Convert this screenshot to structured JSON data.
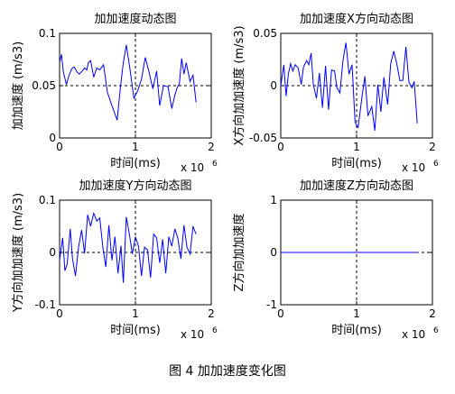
{
  "figure": {
    "caption": "图 4  加加速度变化图"
  },
  "chart_data": [
    {
      "type": "line",
      "title": "加加速度动态图",
      "xlabel": "时间(ms)",
      "ylabel": "加加速度 (m/s3)",
      "x_multiplier": "x 10",
      "x_exponent": "6",
      "xlim": [
        0,
        2
      ],
      "ylim": [
        0,
        0.1
      ],
      "xticks": [
        0,
        1,
        2
      ],
      "xtick_labels": [
        "0",
        "1",
        "2"
      ],
      "yticks": [
        0,
        0.05,
        0.1
      ],
      "ytick_labels": [
        "0",
        "0.05",
        "0.1"
      ],
      "guide_x": 1,
      "guide_y": 0.05,
      "series": [
        {
          "x": [
            0,
            0.025,
            0.05,
            0.09,
            0.12,
            0.16,
            0.19,
            0.23,
            0.26,
            0.3,
            0.33,
            0.36,
            0.38,
            0.41,
            0.45,
            0.49,
            0.53,
            0.58,
            0.63,
            0.68,
            0.72,
            0.76,
            0.8,
            0.84,
            0.88,
            0.93,
            0.98,
            1.03,
            1.08,
            1.13,
            1.18,
            1.23,
            1.28,
            1.32,
            1.37,
            1.43,
            1.48,
            1.52,
            1.55,
            1.58,
            1.61,
            1.64,
            1.67,
            1.72,
            1.76,
            1.8
          ],
          "y": [
            0.072,
            0.08,
            0.063,
            0.051,
            0.059,
            0.066,
            0.068,
            0.063,
            0.061,
            0.064,
            0.067,
            0.065,
            0.072,
            0.074,
            0.058,
            0.067,
            0.065,
            0.07,
            0.044,
            0.033,
            0.025,
            0.017,
            0.047,
            0.072,
            0.089,
            0.065,
            0.038,
            0.045,
            0.056,
            0.077,
            0.063,
            0.047,
            0.064,
            0.031,
            0.05,
            0.049,
            0.028,
            0.041,
            0.048,
            0.052,
            0.076,
            0.061,
            0.072,
            0.054,
            0.06,
            0.034
          ]
        }
      ]
    },
    {
      "type": "line",
      "title": "加加速度X方向动态图",
      "xlabel": "时间(ms)",
      "ylabel": "X方向加加速度 (m/s3)",
      "x_multiplier": "x 10",
      "x_exponent": "6",
      "xlim": [
        0,
        2
      ],
      "ylim": [
        -0.05,
        0.05
      ],
      "xticks": [
        0,
        1,
        2
      ],
      "xtick_labels": [
        "0",
        "1",
        "2"
      ],
      "yticks": [
        -0.05,
        0,
        0.05
      ],
      "ytick_labels": [
        "-0.05",
        "0",
        "0.05"
      ],
      "guide_x": 1,
      "guide_y": 0,
      "series": [
        {
          "x": [
            0,
            0.04,
            0.07,
            0.1,
            0.13,
            0.16,
            0.19,
            0.23,
            0.27,
            0.3,
            0.34,
            0.37,
            0.4,
            0.43,
            0.47,
            0.51,
            0.55,
            0.59,
            0.63,
            0.67,
            0.71,
            0.74,
            0.78,
            0.82,
            0.86,
            0.9,
            0.94,
            0.98,
            1.02,
            1.07,
            1.11,
            1.15,
            1.2,
            1.24,
            1.28,
            1.32,
            1.36,
            1.41,
            1.45,
            1.49,
            1.53,
            1.57,
            1.61,
            1.65,
            1.69,
            1.73,
            1.76,
            1.8
          ],
          "y": [
            0,
            0.02,
            -0.01,
            0.011,
            0.021,
            0.014,
            0.02,
            0.017,
            0.001,
            0.018,
            0.024,
            0.02,
            0.031,
            0.001,
            -0.012,
            0.012,
            -0.021,
            0.019,
            -0.023,
            0.015,
            0.014,
            -0.002,
            -0.007,
            0.024,
            0.041,
            0.011,
            0.02,
            -0.035,
            -0.04,
            -0.011,
            0.009,
            -0.029,
            -0.02,
            -0.043,
            0.001,
            -0.025,
            0.008,
            -0.018,
            0.021,
            0.033,
            0.021,
            0.005,
            0.005,
            0.037,
            0.003,
            -0.002,
            0.004,
            -0.036
          ]
        }
      ]
    },
    {
      "type": "line",
      "title": "加加速度Y方向动态图",
      "xlabel": "时间(ms)",
      "ylabel": "Y方向加加速度 (m/s3)",
      "x_multiplier": "x 10",
      "x_exponent": "6",
      "xlim": [
        0,
        2
      ],
      "ylim": [
        -0.1,
        0.1
      ],
      "xticks": [
        0,
        1,
        2
      ],
      "xtick_labels": [
        "0",
        "1",
        "2"
      ],
      "yticks": [
        -0.1,
        0,
        0.1
      ],
      "ytick_labels": [
        "-0.1",
        "0",
        "0.1"
      ],
      "guide_x": 1,
      "guide_y": 0,
      "series": [
        {
          "x": [
            0,
            0.04,
            0.07,
            0.1,
            0.14,
            0.17,
            0.21,
            0.25,
            0.29,
            0.33,
            0.37,
            0.41,
            0.45,
            0.49,
            0.53,
            0.57,
            0.61,
            0.65,
            0.69,
            0.73,
            0.77,
            0.81,
            0.84,
            0.88,
            0.92,
            0.96,
            1,
            1.04,
            1.08,
            1.12,
            1.16,
            1.2,
            1.24,
            1.28,
            1.32,
            1.36,
            1.4,
            1.44,
            1.48,
            1.52,
            1.56,
            1.6,
            1.64,
            1.68,
            1.72,
            1.76,
            1.8
          ],
          "y": [
            -0.015,
            0.028,
            -0.035,
            -0.022,
            0.045,
            -0.012,
            -0.045,
            0.01,
            0.043,
            -0.002,
            0.072,
            0.05,
            0.075,
            0.06,
            0.066,
            0.01,
            -0.028,
            0.052,
            -0.015,
            0.03,
            -0.04,
            0.013,
            -0.058,
            0.068,
            0.035,
            -0.003,
            0.03,
            0.012,
            -0.045,
            0.01,
            0.005,
            -0.048,
            0.035,
            0.028,
            -0.02,
            0.025,
            -0.04,
            0.03,
            0.012,
            0.045,
            0.027,
            -0.012,
            0.052,
            0.01,
            -0.003,
            0.05,
            0.035
          ]
        }
      ]
    },
    {
      "type": "line",
      "title": "加加速度Z方向动态图",
      "xlabel": "时间(ms)",
      "ylabel": "Z方向加加速度",
      "x_multiplier": "x 10",
      "x_exponent": "6",
      "xlim": [
        0,
        2
      ],
      "ylim": [
        -1,
        1
      ],
      "xticks": [
        0,
        1,
        2
      ],
      "xtick_labels": [
        "0",
        "1",
        "2"
      ],
      "yticks": [
        -1,
        0,
        1
      ],
      "ytick_labels": [
        "-1",
        "0",
        "1"
      ],
      "guide_x": 1,
      "guide_y": 0,
      "series": [
        {
          "x": [
            0,
            1.8
          ],
          "y": [
            0,
            0
          ]
        }
      ]
    }
  ]
}
